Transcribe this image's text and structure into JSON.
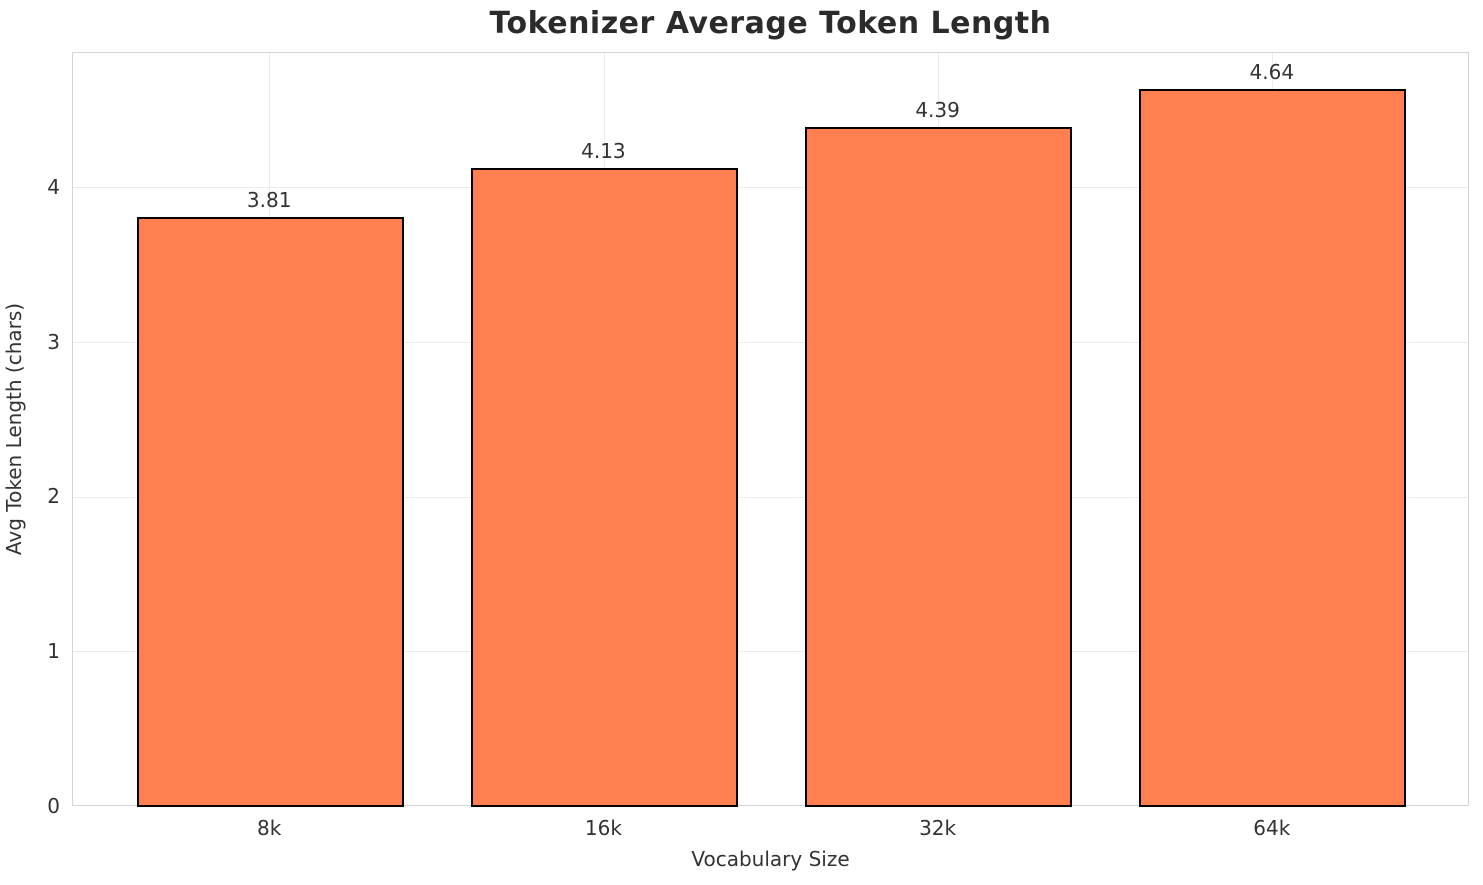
{
  "chart_data": {
    "type": "bar",
    "title": "Tokenizer Average Token Length",
    "xlabel": "Vocabulary Size",
    "ylabel": "Avg Token Length (chars)",
    "categories": [
      "8k",
      "16k",
      "32k",
      "64k"
    ],
    "values": [
      3.81,
      4.13,
      4.39,
      4.64
    ],
    "value_labels": [
      "3.81",
      "4.13",
      "4.39",
      "4.64"
    ],
    "yticks": [
      0,
      1,
      2,
      3,
      4
    ],
    "ytick_labels": [
      "0",
      "1",
      "2",
      "3",
      "4"
    ],
    "ylim": [
      0,
      4.87
    ],
    "grid": "both",
    "legend": "none",
    "colors": {
      "bar_fill": "#FF7F50",
      "bar_edge": "#000000",
      "grid": "#ececec",
      "spine": "#d4d4d4",
      "title_text": "#2b2b2b",
      "tick_text": "#333333",
      "background": "#ffffff"
    }
  }
}
